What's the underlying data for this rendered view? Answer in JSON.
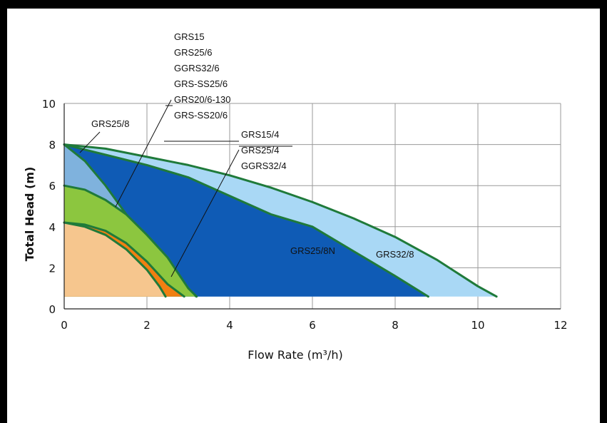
{
  "chart_data": {
    "type": "area",
    "xlabel": "Flow Rate (m³/h)",
    "ylabel": "Total  Head (m)",
    "xlim": [
      0,
      12
    ],
    "ylim": [
      0,
      10
    ],
    "xticks": [
      "0",
      "2",
      "4",
      "6",
      "8",
      "10",
      "12"
    ],
    "yticks": [
      "0",
      "2",
      "4",
      "6",
      "8",
      "10"
    ],
    "grid": true,
    "series": [
      {
        "name": "GRS32/8",
        "color": "#a9d8f5",
        "x": [
          0,
          1,
          2,
          3,
          4,
          5,
          6,
          7,
          8,
          9,
          10,
          10.45
        ],
        "y": [
          8.0,
          7.8,
          7.4,
          7.0,
          6.5,
          5.9,
          5.2,
          4.4,
          3.5,
          2.4,
          1.1,
          0.6
        ]
      },
      {
        "name": "GRS25/8N",
        "color": "#0f5bb5",
        "x": [
          0,
          1,
          2,
          3,
          4,
          5,
          6,
          7,
          8,
          8.8
        ],
        "y": [
          8.0,
          7.5,
          7.0,
          6.4,
          5.5,
          4.6,
          4.0,
          2.8,
          1.6,
          0.6
        ]
      },
      {
        "name": "GRS25/8",
        "color": "#7fb2dd",
        "x": [
          0,
          0.5,
          1.0,
          1.5,
          2.0,
          2.5,
          3.0,
          3.2
        ],
        "y": [
          8.0,
          7.2,
          6.0,
          4.6,
          3.2,
          1.9,
          0.8,
          0.6
        ]
      },
      {
        "name": "GRS15 / GRS25/6 / GGRS32/6 / GRS-SS25/6 / GRS20/6-130 / GRS-SS20/6",
        "color": "#8cc63f",
        "x": [
          0,
          0.5,
          1.0,
          1.5,
          2.0,
          2.5,
          3.0,
          3.2
        ],
        "y": [
          6.0,
          5.8,
          5.3,
          4.6,
          3.6,
          2.5,
          1.0,
          0.6
        ]
      },
      {
        "name": "GRS15/4 / GRS25/4 / GGRS32/4",
        "color": "#f07f12",
        "x": [
          0,
          0.5,
          1.0,
          1.5,
          2.0,
          2.5,
          2.9
        ],
        "y": [
          4.2,
          4.1,
          3.8,
          3.2,
          2.3,
          1.2,
          0.6
        ]
      },
      {
        "name": "",
        "color": "#f6c68e",
        "x": [
          0,
          0.5,
          1.0,
          1.5,
          2.0,
          2.3,
          2.45
        ],
        "y": [
          4.2,
          4.0,
          3.6,
          2.9,
          1.9,
          1.1,
          0.6
        ]
      }
    ],
    "annotations": {
      "group6": [
        "GRS15",
        "GRS25/6",
        "GGRS32/6",
        "GRS-SS25/6",
        "GRS20/6-130",
        "GRS-SS20/6"
      ],
      "grs25_8": "GRS25/8",
      "group4": [
        "GRS15/4",
        "GRS25/4",
        "GGRS32/4"
      ],
      "grs25_8n": "GRS25/8N",
      "grs32_8": "GRS32/8"
    },
    "curve_color": "#1f7a3a"
  }
}
